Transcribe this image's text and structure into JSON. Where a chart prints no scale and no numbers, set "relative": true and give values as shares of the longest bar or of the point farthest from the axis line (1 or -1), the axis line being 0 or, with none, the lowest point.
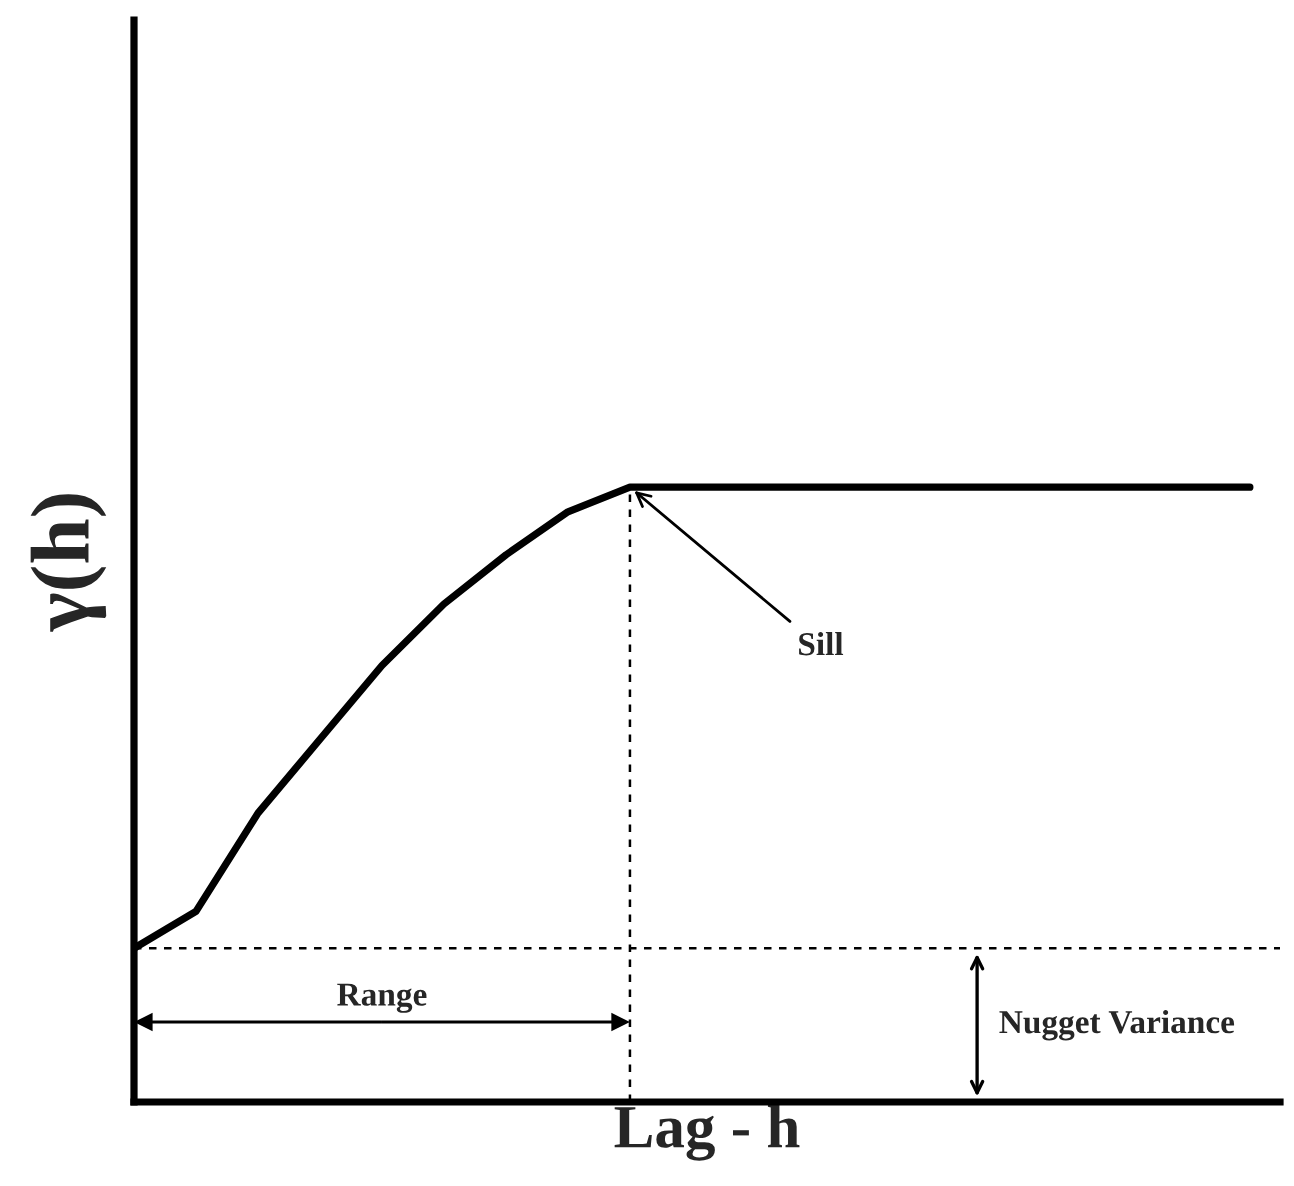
{
  "chart_data": {
    "type": "line",
    "relative": true,
    "xlabel": "Lag - h",
    "ylabel": "γ(h)",
    "categories": [
      null,
      null,
      null,
      null,
      null,
      null,
      null,
      null,
      null,
      null,
      null,
      null,
      null,
      null,
      null,
      null,
      null,
      null,
      null
    ],
    "series": [
      {
        "color": "#000000",
        "values": [
          0.25,
          0.31,
          0.47,
          0.59,
          0.71,
          0.81,
          0.89,
          0.96,
          1.0,
          1.0,
          1.0,
          1.0,
          1.0,
          1.0,
          1.0,
          1.0,
          1.0,
          1.0,
          1.0
        ]
      }
    ],
    "ref_lines": [
      {
        "axis": "y",
        "value": 0.25,
        "line_style": "dashed",
        "color": "#000000"
      }
    ],
    "annotations": [
      "Range",
      "Sill",
      "Nugget Variance"
    ],
    "legend": false,
    "marker": "none",
    "line_style": "solid"
  }
}
